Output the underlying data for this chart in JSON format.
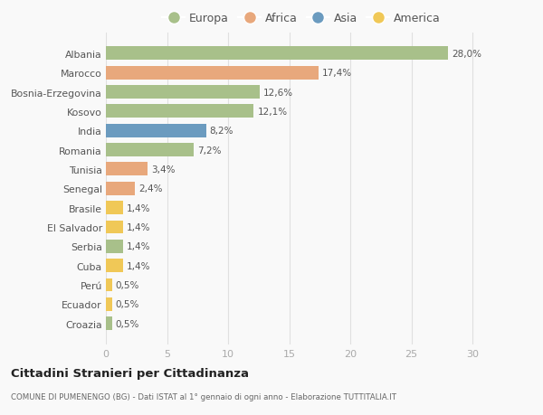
{
  "countries": [
    "Albania",
    "Marocco",
    "Bosnia-Erzegovina",
    "Kosovo",
    "India",
    "Romania",
    "Tunisia",
    "Senegal",
    "Brasile",
    "El Salvador",
    "Serbia",
    "Cuba",
    "Perú",
    "Ecuador",
    "Croazia"
  ],
  "values": [
    28.0,
    17.4,
    12.6,
    12.1,
    8.2,
    7.2,
    3.4,
    2.4,
    1.4,
    1.4,
    1.4,
    1.4,
    0.5,
    0.5,
    0.5
  ],
  "labels": [
    "28,0%",
    "17,4%",
    "12,6%",
    "12,1%",
    "8,2%",
    "7,2%",
    "3,4%",
    "2,4%",
    "1,4%",
    "1,4%",
    "1,4%",
    "1,4%",
    "0,5%",
    "0,5%",
    "0,5%"
  ],
  "continents": [
    "Europa",
    "Africa",
    "Europa",
    "Europa",
    "Asia",
    "Europa",
    "Africa",
    "Africa",
    "America",
    "America",
    "Europa",
    "America",
    "America",
    "America",
    "Europa"
  ],
  "colors": {
    "Europa": "#a8c08a",
    "Africa": "#e8a87c",
    "Asia": "#6b9bbf",
    "America": "#f0c857"
  },
  "legend_order": [
    "Europa",
    "Africa",
    "Asia",
    "America"
  ],
  "title": "Cittadini Stranieri per Cittadinanza",
  "subtitle": "COMUNE DI PUMENENGO (BG) - Dati ISTAT al 1° gennaio di ogni anno - Elaborazione TUTTITALIA.IT",
  "xlim": [
    0,
    32
  ],
  "xticks": [
    0,
    5,
    10,
    15,
    20,
    25,
    30
  ],
  "background_color": "#f9f9f9",
  "bar_height": 0.7,
  "grid_color": "#e0e0e0"
}
